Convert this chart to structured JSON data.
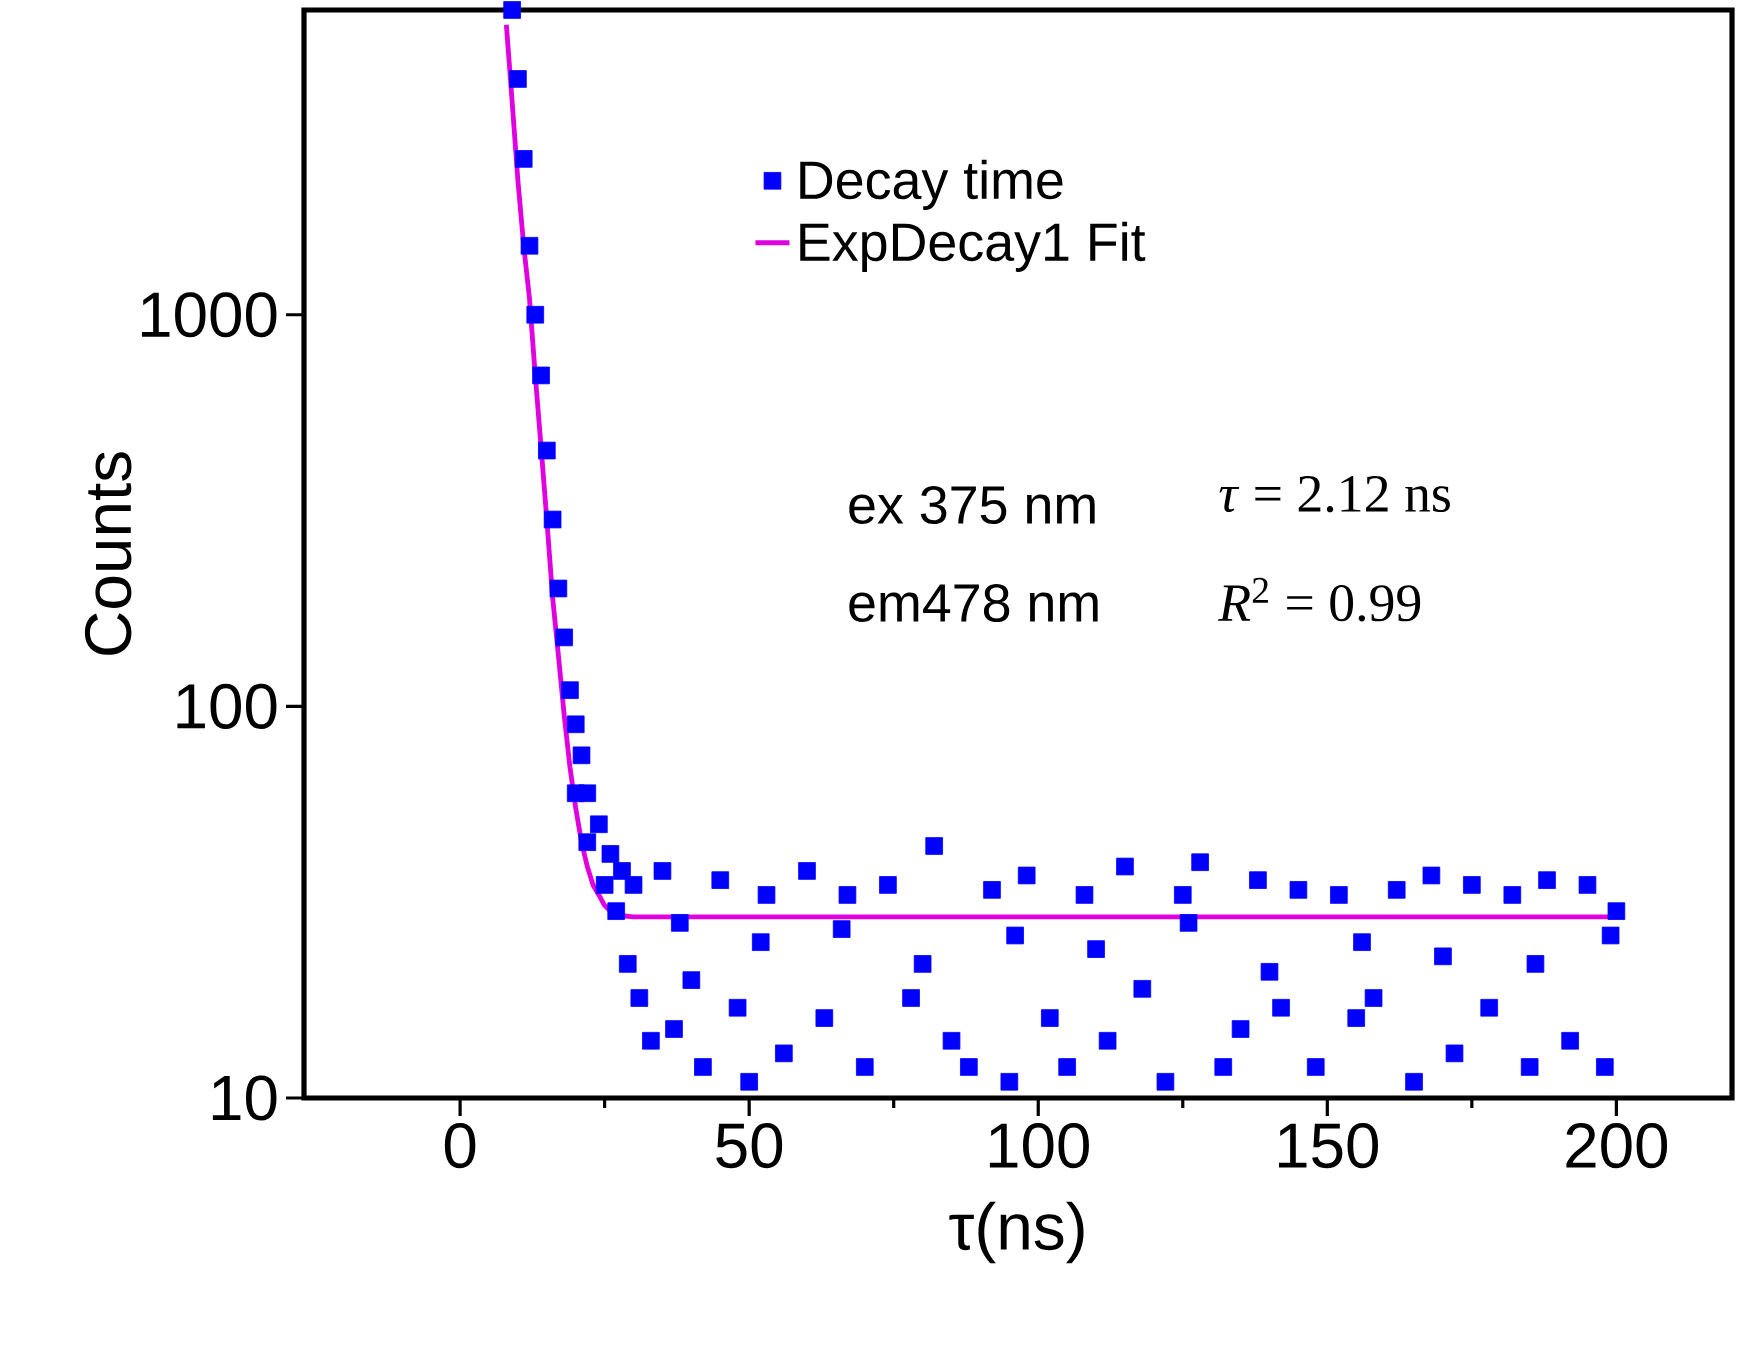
{
  "chart_data": {
    "type": "scatter",
    "xlabel": "τ(ns)",
    "ylabel": "Counts",
    "xlim": [
      -27,
      220
    ],
    "xticks": [
      0,
      50,
      100,
      150,
      200
    ],
    "ylim": [
      10,
      6000
    ],
    "yticks": [
      10,
      100,
      1000
    ],
    "log": "y",
    "legend": "top right",
    "marker": "square",
    "annotations": [
      "ex 375 nm",
      "em478 nm",
      "*τ* = 2.12 ns",
      "*R*$^{2}$ = 0.99"
    ],
    "series": [
      {
        "name": "Decay time",
        "color": "#0000ff",
        "x": [
          9,
          10,
          11,
          12,
          13,
          14,
          15,
          16,
          17,
          18,
          19,
          20,
          21,
          22,
          24,
          26,
          28,
          30,
          20,
          22,
          25,
          27,
          29,
          31,
          33,
          35,
          37,
          40,
          42,
          45,
          48,
          50,
          53,
          56,
          60,
          63,
          67,
          70,
          74,
          78,
          82,
          85,
          88,
          92,
          95,
          98,
          102,
          105,
          108,
          112,
          115,
          118,
          122,
          125,
          128,
          132,
          135,
          138,
          142,
          145,
          148,
          152,
          155,
          158,
          162,
          165,
          168,
          172,
          175,
          178,
          182,
          185,
          188,
          192,
          195,
          198,
          200,
          38,
          52,
          66,
          80,
          96,
          110,
          126,
          140,
          156,
          170,
          186,
          199
        ],
        "values": [
          6000,
          4000,
          2500,
          1500,
          1000,
          700,
          450,
          300,
          200,
          150,
          110,
          90,
          75,
          60,
          50,
          42,
          38,
          35,
          60,
          45,
          35,
          30,
          22,
          18,
          14,
          38,
          15,
          20,
          12,
          36,
          17,
          11,
          33,
          13,
          38,
          16,
          33,
          12,
          35,
          18,
          44,
          14,
          12,
          34,
          11,
          37,
          16,
          12,
          33,
          14,
          39,
          19,
          11,
          33,
          40,
          12,
          15,
          36,
          17,
          34,
          12,
          33,
          16,
          18,
          34,
          11,
          37,
          13,
          35,
          17,
          33,
          12,
          36,
          14,
          35,
          12,
          30,
          28,
          25,
          27,
          22,
          26,
          24,
          28,
          21,
          25,
          23,
          22,
          26
        ]
      },
      {
        "name": "ExpDecay1 Fit",
        "color": "#e000e0",
        "type": "line",
        "marker": "none",
        "x": [
          8,
          9,
          10,
          11,
          12,
          13,
          14,
          15,
          16,
          17,
          18,
          19,
          20,
          21,
          22,
          23,
          24,
          25,
          26,
          27,
          28,
          30,
          50,
          100,
          150,
          200
        ],
        "values": [
          5500,
          3500,
          2200,
          1500,
          1100,
          700,
          460,
          300,
          190,
          135,
          95,
          70,
          55,
          45,
          39,
          35,
          33,
          31,
          30,
          29.5,
          29.2,
          29,
          29,
          29,
          29,
          29
        ]
      }
    ]
  }
}
